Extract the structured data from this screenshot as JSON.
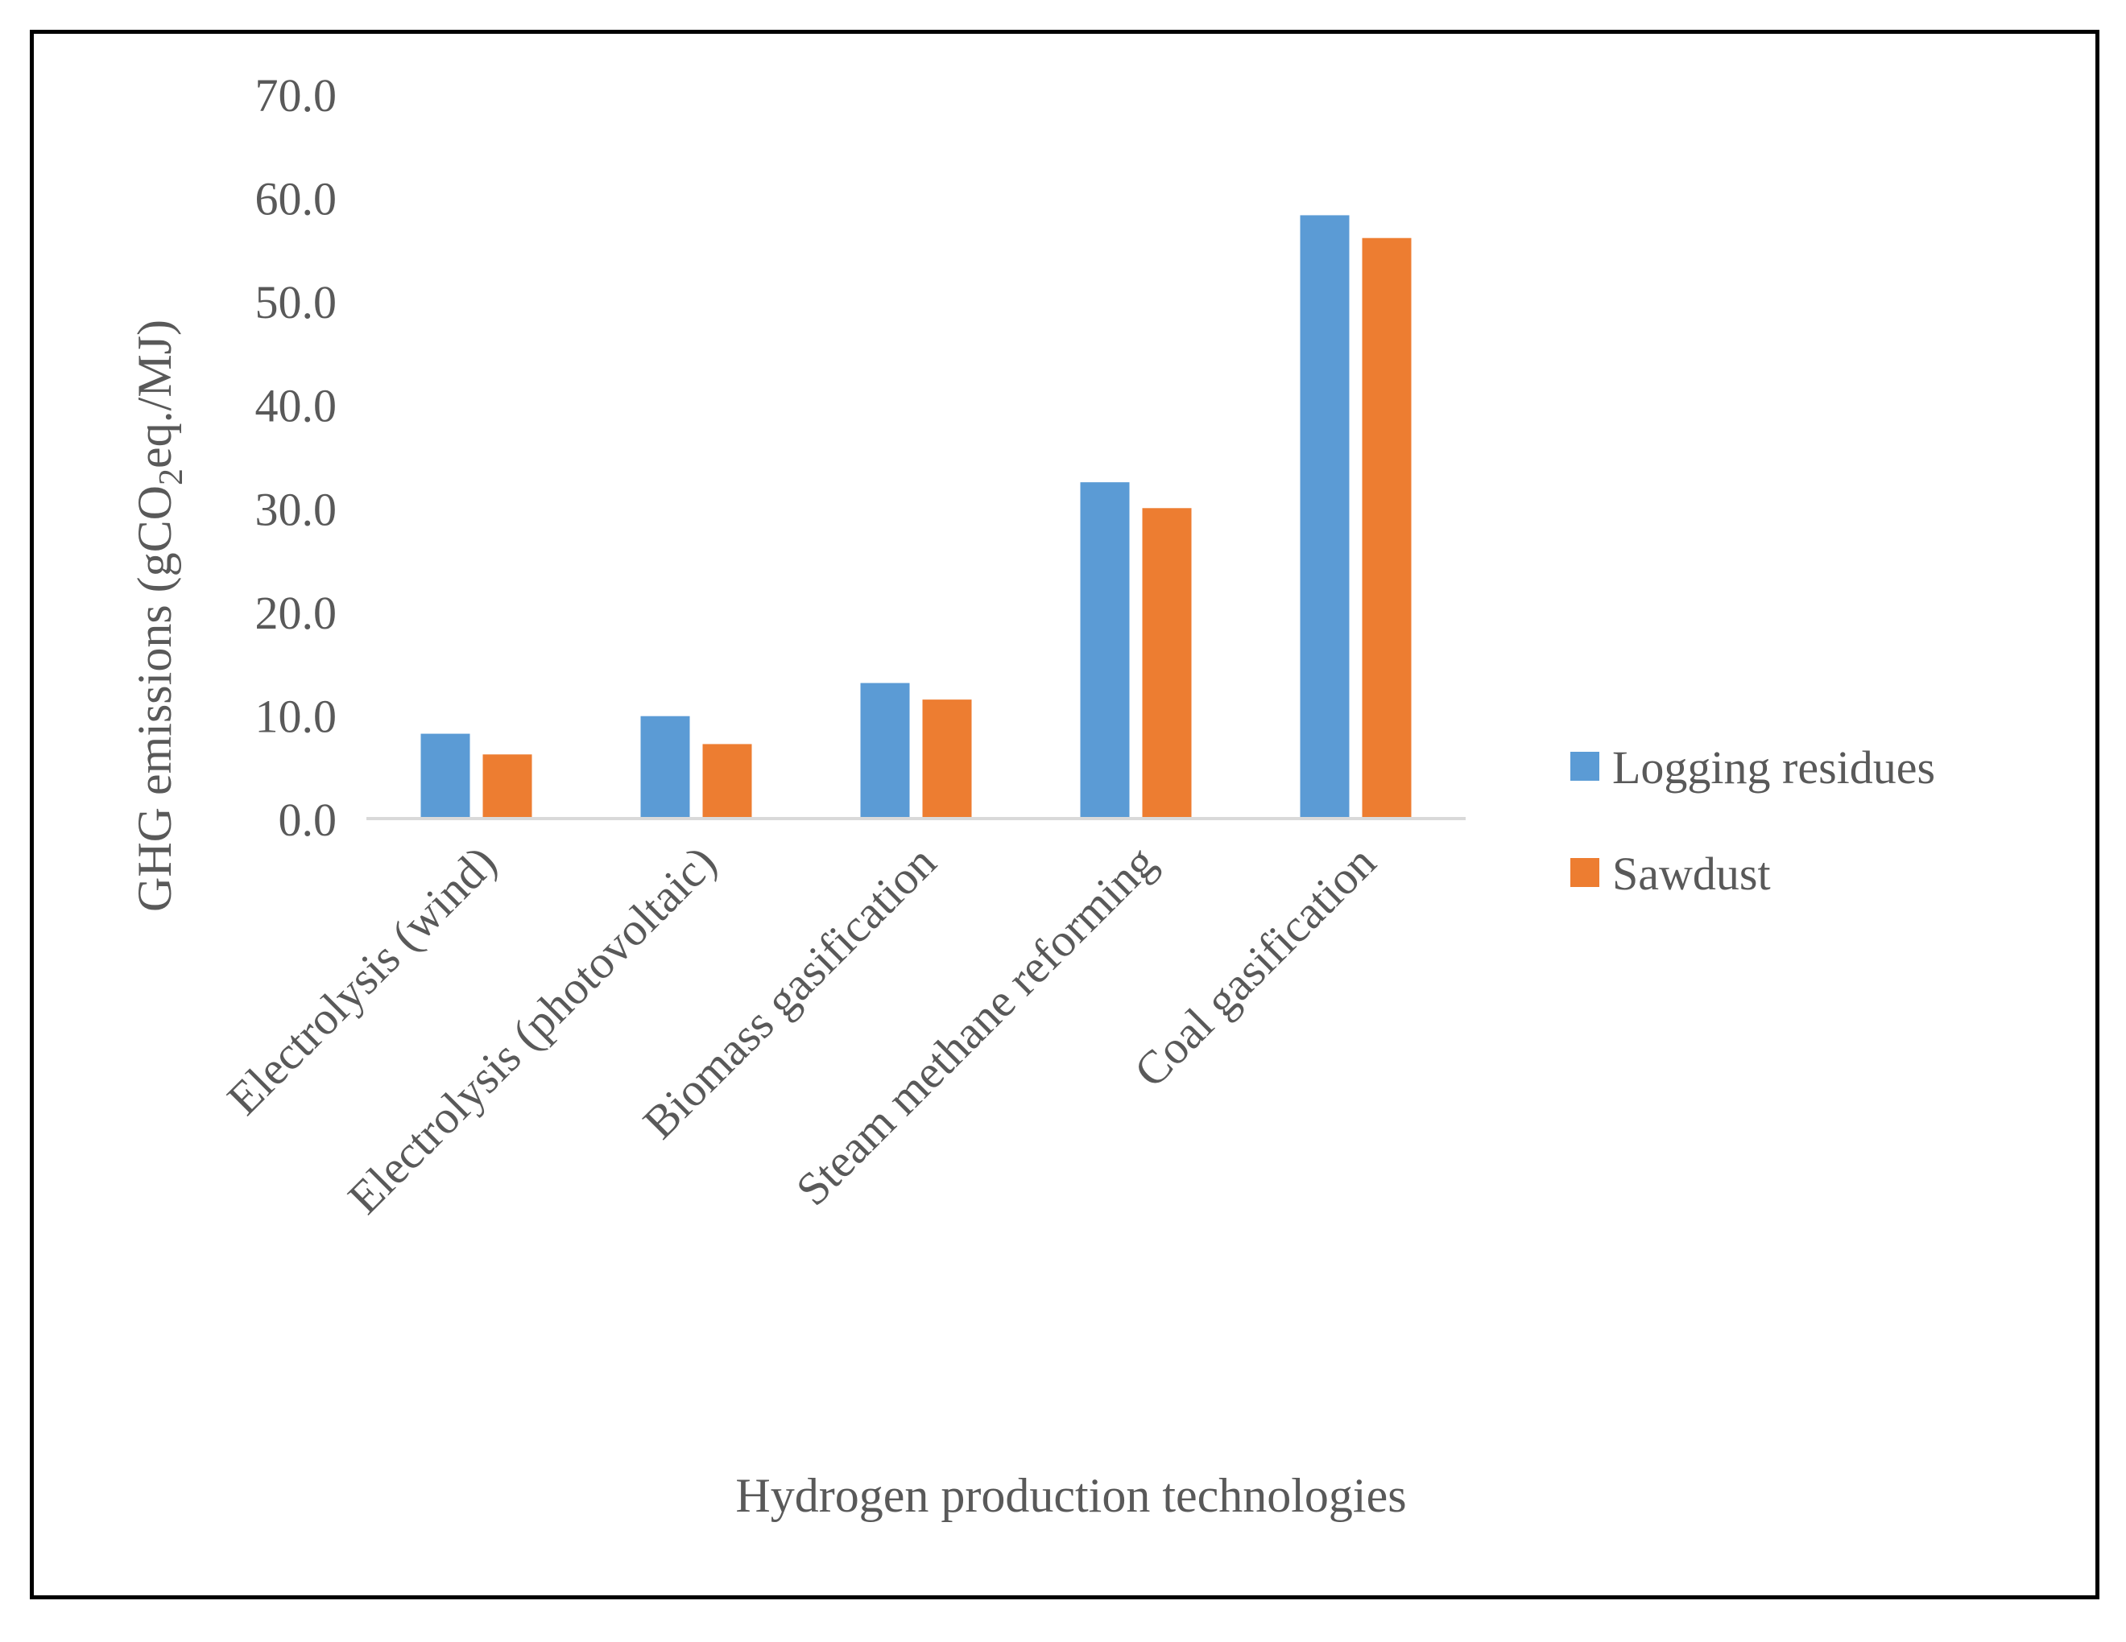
{
  "chart_data": {
    "type": "bar",
    "title": "",
    "xlabel": "Hydrogen production technologies",
    "ylabel": {
      "prefix": "GHG emissions (gCO",
      "subscript": "2",
      "suffix": "eq./MJ)"
    },
    "ylim": [
      0,
      70
    ],
    "yticks": [
      "0.0",
      "10.0",
      "20.0",
      "30.0",
      "40.0",
      "50.0",
      "60.0",
      "70.0"
    ],
    "grid": false,
    "legend_position": "right",
    "categories": [
      "Electrolysis (wind)",
      "Electrolysis (photovoltaic)",
      "Biomass gasification",
      "Steam methane reforming",
      "Coal gasification"
    ],
    "series": [
      {
        "name": "Logging residues",
        "color": "#5B9BD5",
        "values": [
          8.2,
          9.9,
          13.1,
          32.5,
          58.3
        ]
      },
      {
        "name": "Sawdust",
        "color": "#ED7D31",
        "values": [
          6.2,
          7.2,
          11.5,
          30.0,
          56.1
        ]
      }
    ]
  }
}
